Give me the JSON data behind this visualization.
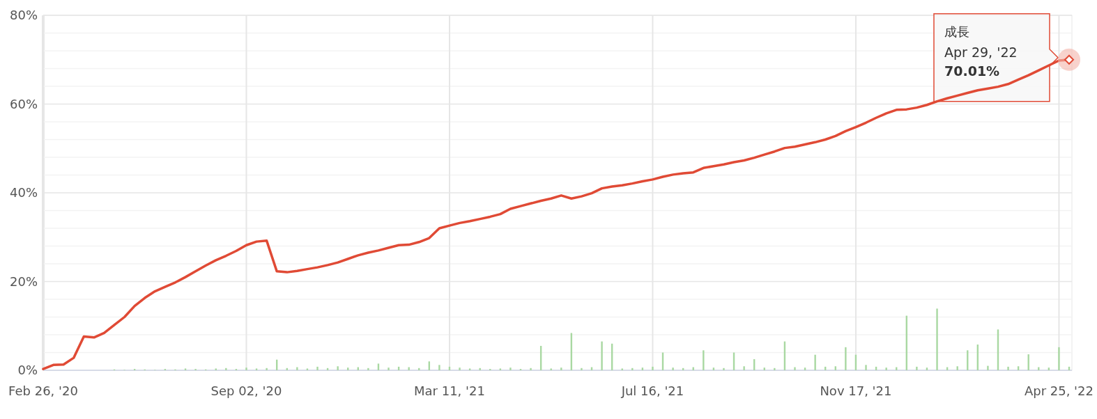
{
  "chart_data": {
    "type": "line",
    "categories": [
      "Feb 26, '20",
      null,
      null,
      null,
      null,
      null,
      null,
      null,
      null,
      null,
      null,
      null,
      null,
      null,
      null,
      null,
      null,
      null,
      null,
      null,
      "Sep 02, '20",
      null,
      null,
      null,
      null,
      null,
      null,
      null,
      null,
      null,
      null,
      null,
      null,
      null,
      null,
      null,
      null,
      null,
      null,
      null,
      "Mar 11, '21",
      null,
      null,
      null,
      null,
      null,
      null,
      null,
      null,
      null,
      null,
      null,
      null,
      null,
      null,
      null,
      null,
      null,
      null,
      null,
      "Jul 16, '21",
      null,
      null,
      null,
      null,
      null,
      null,
      null,
      null,
      null,
      null,
      null,
      null,
      null,
      null,
      null,
      null,
      null,
      null,
      null,
      "Nov 17, '21",
      null,
      null,
      null,
      null,
      null,
      null,
      null,
      null,
      null,
      null,
      null,
      null,
      null,
      null,
      null,
      null,
      null,
      null,
      null,
      "Apr 25, '22",
      null
    ],
    "series": [
      {
        "type": "bar",
        "color": "#a9d8a2",
        "values": [
          0,
          0,
          0,
          0,
          0,
          0,
          0,
          0.2,
          0.1,
          0.3,
          0.2,
          0.1,
          0.3,
          0.2,
          0.4,
          0.3,
          0.2,
          0.4,
          0.5,
          0.3,
          0.6,
          0.4,
          0.5,
          2.4,
          0.5,
          0.7,
          0.4,
          0.8,
          0.5,
          0.9,
          0.6,
          0.7,
          0.5,
          1.5,
          0.6,
          0.8,
          0.7,
          0.5,
          2,
          1.2,
          0.8,
          0.6,
          0.4,
          0.5,
          0.3,
          0.4,
          0.6,
          0.3,
          0.5,
          5.5,
          0.4,
          0.6,
          8.4,
          0.5,
          0.7,
          6.5,
          6,
          0.4,
          0.5,
          0.6,
          0.8,
          4,
          0.6,
          0.5,
          0.7,
          4.5,
          0.6,
          0.5,
          4,
          0.9,
          2.5,
          0.6,
          0.5,
          6.5,
          0.7,
          0.6,
          3.5,
          0.8,
          0.9,
          5.2,
          3.5,
          1.2,
          0.8,
          0.6,
          0.7,
          12.3,
          0.8,
          0.6,
          13.9,
          0.7,
          0.9,
          4.5,
          5.8,
          1,
          9.2,
          0.8,
          0.9,
          3.6,
          0.7,
          0.6,
          5.2,
          0.8
        ]
      },
      {
        "name": "成長",
        "color": "#e04a35",
        "values": [
          0.3,
          1.2,
          1.3,
          2.8,
          7.6,
          7.4,
          8.4,
          10.2,
          12,
          14.5,
          16.3,
          17.8,
          18.8,
          19.8,
          21,
          22.3,
          23.6,
          24.8,
          25.8,
          26.9,
          28.2,
          29,
          29.2,
          22.3,
          22.1,
          22.4,
          22.8,
          23.2,
          23.7,
          24.3,
          25.1,
          25.9,
          26.5,
          27,
          27.6,
          28.2,
          28.3,
          28.9,
          29.8,
          32,
          32.6,
          33.2,
          33.6,
          34.1,
          34.6,
          35.2,
          36.4,
          37,
          37.6,
          38.2,
          38.7,
          39.4,
          38.7,
          39.2,
          39.9,
          41,
          41.4,
          41.7,
          42.1,
          42.6,
          43,
          43.6,
          44.1,
          44.4,
          44.6,
          45.6,
          46,
          46.4,
          46.9,
          47.3,
          47.9,
          48.6,
          49.3,
          50.1,
          50.4,
          50.9,
          51.4,
          52,
          52.8,
          53.9,
          54.8,
          55.8,
          56.9,
          57.9,
          58.7,
          58.8,
          59.2,
          59.8,
          60.6,
          61.3,
          61.9,
          62.5,
          63.1,
          63.5,
          63.9,
          64.5,
          65.5,
          66.5,
          67.6,
          68.7,
          69.8,
          70
        ]
      }
    ],
    "ylim": [
      0,
      80
    ],
    "yticks": [
      {
        "value": 0,
        "label": "0%"
      },
      {
        "value": 4,
        "label": null
      },
      {
        "value": 8,
        "label": null
      },
      {
        "value": 12,
        "label": null
      },
      {
        "value": 16,
        "label": null
      },
      {
        "value": 20,
        "label": "20%"
      },
      {
        "value": 24,
        "label": null
      },
      {
        "value": 28,
        "label": null
      },
      {
        "value": 32,
        "label": null
      },
      {
        "value": 36,
        "label": null
      },
      {
        "value": 40,
        "label": "40%"
      },
      {
        "value": 44,
        "label": null
      },
      {
        "value": 48,
        "label": null
      },
      {
        "value": 52,
        "label": null
      },
      {
        "value": 56,
        "label": null
      },
      {
        "value": 60,
        "label": "60%"
      },
      {
        "value": 64,
        "label": null
      },
      {
        "value": 68,
        "label": null
      },
      {
        "value": 72,
        "label": null
      },
      {
        "value": 76,
        "label": null
      },
      {
        "value": 80,
        "label": "80%"
      }
    ],
    "annotations": [
      "Apr 29, '22",
      "70.01%"
    ],
    "grid": true,
    "line_style": "solid"
  }
}
